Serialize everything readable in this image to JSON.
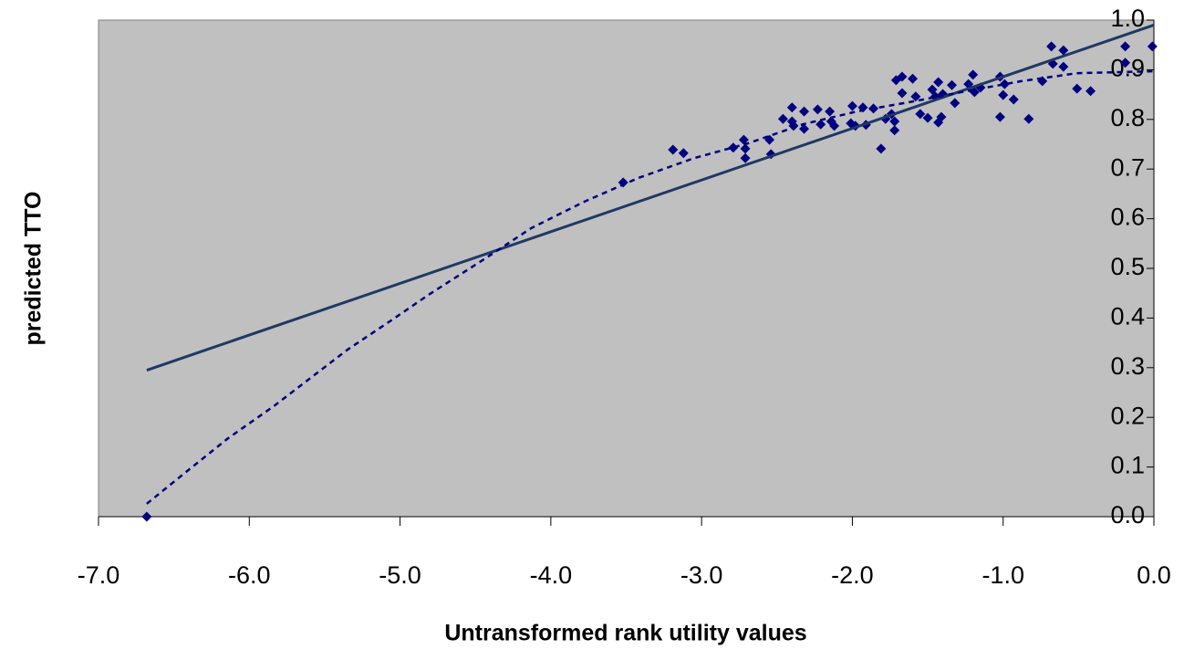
{
  "chart_data": {
    "type": "scatter",
    "xlabel": "Untransformed rank utility values",
    "ylabel": "predicted TTO",
    "xlim": [
      -7,
      0
    ],
    "ylim": [
      0,
      1
    ],
    "xticks": [
      {
        "value": -7,
        "label": "-7.0"
      },
      {
        "value": -6,
        "label": "-6.0"
      },
      {
        "value": -5,
        "label": "-5.0"
      },
      {
        "value": -4,
        "label": "-4.0"
      },
      {
        "value": -3,
        "label": "-3.0"
      },
      {
        "value": -2,
        "label": "-2.0"
      },
      {
        "value": -1,
        "label": "-1.0"
      },
      {
        "value": 0,
        "label": "0.0"
      }
    ],
    "yticks": [
      {
        "value": 0,
        "label": "0.0"
      },
      {
        "value": 0.1,
        "label": "0.1"
      },
      {
        "value": 0.2,
        "label": "0.2"
      },
      {
        "value": 0.3,
        "label": "0.3"
      },
      {
        "value": 0.4,
        "label": "0.4"
      },
      {
        "value": 0.5,
        "label": "0.5"
      },
      {
        "value": 0.6,
        "label": "0.6"
      },
      {
        "value": 0.7,
        "label": "0.7"
      },
      {
        "value": 0.8,
        "label": "0.8"
      },
      {
        "value": 0.9,
        "label": "0.9"
      },
      {
        "value": 1,
        "label": "1.0"
      }
    ],
    "plot_background": "#c0c0c0",
    "series": [
      {
        "mode": "markers",
        "color": "#000080",
        "x": [
          -6.68,
          -3.52,
          -3.19,
          -3.12,
          -2.79,
          -2.72,
          -2.71,
          -2.71,
          -2.55,
          -2.54,
          -2.46,
          -2.4,
          -2.4,
          -2.39,
          -2.32,
          -2.32,
          -2.23,
          -2.21,
          -2.15,
          -2.14,
          -2.12,
          -2.01,
          -2.0,
          -1.98,
          -1.93,
          -1.91,
          -1.86,
          -1.81,
          -1.78,
          -1.74,
          -1.72,
          -1.72,
          -1.71,
          -1.67,
          -1.67,
          -1.6,
          -1.58,
          -1.55,
          -1.5,
          -1.47,
          -1.45,
          -1.43,
          -1.43,
          -1.41,
          -1.4,
          -1.34,
          -1.32,
          -1.23,
          -1.2,
          -1.19,
          -1.15,
          -1.02,
          -1.02,
          -1.0,
          -0.99,
          -0.93,
          -0.83,
          -0.74,
          -0.68,
          -0.67,
          -0.6,
          -0.6,
          -0.51,
          -0.42,
          -0.19,
          -0.19,
          -0.01
        ],
        "values": [
          0.0,
          0.673,
          0.739,
          0.732,
          0.743,
          0.759,
          0.741,
          0.722,
          0.759,
          0.73,
          0.801,
          0.824,
          0.796,
          0.787,
          0.816,
          0.781,
          0.82,
          0.79,
          0.816,
          0.796,
          0.787,
          0.792,
          0.827,
          0.787,
          0.824,
          0.789,
          0.822,
          0.741,
          0.801,
          0.811,
          0.796,
          0.778,
          0.879,
          0.886,
          0.853,
          0.882,
          0.846,
          0.811,
          0.803,
          0.86,
          0.846,
          0.875,
          0.794,
          0.805,
          0.851,
          0.869,
          0.833,
          0.871,
          0.89,
          0.855,
          0.864,
          0.886,
          0.805,
          0.849,
          0.871,
          0.84,
          0.801,
          0.877,
          0.947,
          0.912,
          0.939,
          0.906,
          0.862,
          0.857,
          0.947,
          0.914,
          0.947
        ]
      },
      {
        "mode": "line",
        "dash": "solid",
        "color": "#1f3864",
        "x": [
          -6.68,
          0
        ],
        "values": [
          0.295,
          0.99
        ]
      },
      {
        "mode": "line",
        "dash": "dotted",
        "color": "#000080",
        "x": [
          -6.68,
          -6.44,
          -6.14,
          -5.84,
          -5.35,
          -5.05,
          -4.81,
          -4.45,
          -4.13,
          -3.78,
          -3.42,
          -3.05,
          -2.69,
          -2.33,
          -1.97,
          -1.6,
          -1.24,
          -0.88,
          -0.51,
          0
        ],
        "values": [
          0.026,
          0.085,
          0.158,
          0.222,
          0.336,
          0.397,
          0.447,
          0.517,
          0.581,
          0.634,
          0.682,
          0.722,
          0.752,
          0.79,
          0.816,
          0.836,
          0.857,
          0.877,
          0.893,
          0.897
        ]
      }
    ]
  }
}
